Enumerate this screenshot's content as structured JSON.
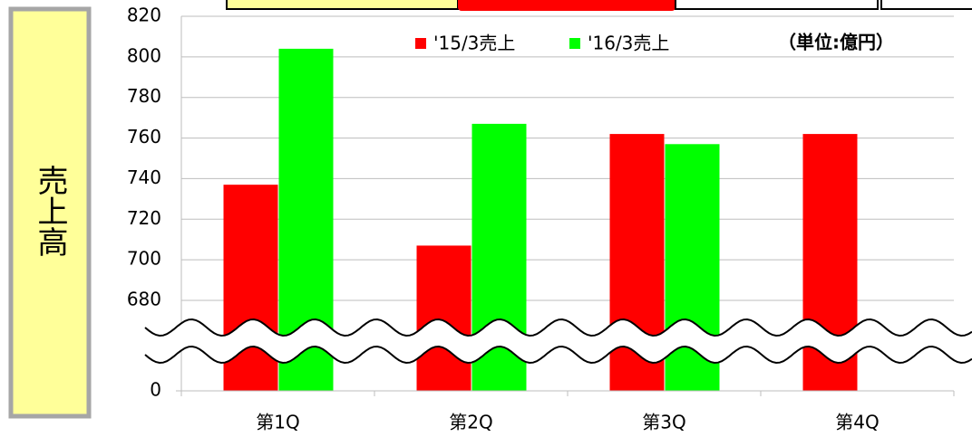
{
  "chart_data": {
    "type": "bar",
    "y_axis_label": "売上高",
    "annotation": "（単位:億円）",
    "categories": [
      "第1Q",
      "第2Q",
      "第3Q",
      "第4Q"
    ],
    "series": [
      {
        "name": "'15/3売上",
        "color": "#ff0000",
        "values": [
          737,
          707,
          762,
          762
        ]
      },
      {
        "name": "'16/3売上",
        "color": "#00ff00",
        "values": [
          804,
          767,
          757,
          null
        ]
      }
    ],
    "ylim": [
      0,
      820
    ],
    "yticks": [
      0,
      680,
      700,
      720,
      740,
      760,
      780,
      800,
      820
    ],
    "axis_break": true,
    "grid": true
  }
}
